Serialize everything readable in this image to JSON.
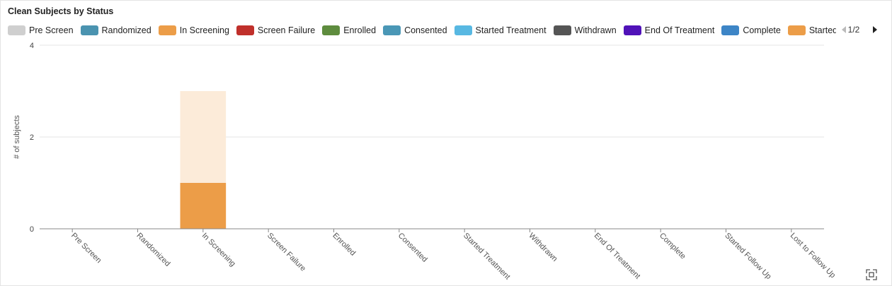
{
  "chart_data": {
    "type": "bar",
    "title": "Clean Subjects by Status",
    "y_label": "# of subjects",
    "legend_page": "1/2",
    "categories": [
      "Pre Screen",
      "Randomized",
      "In Screening",
      "Screen Failure",
      "Enrolled",
      "Consented",
      "Started Treatment",
      "Withdrawn",
      "End Of Treatment",
      "Complete",
      "Started Follow Up",
      "Lost to Follow Up"
    ],
    "totals": [
      0,
      0,
      3,
      0,
      0,
      0,
      0,
      0,
      0,
      0,
      0,
      0
    ],
    "totals_color": "#fcebd9",
    "series": [
      {
        "name": "Pre Screen",
        "color": "#cfcfcf",
        "values": [
          0,
          0,
          0,
          0,
          0,
          0,
          0,
          0,
          0,
          0,
          0,
          0
        ]
      },
      {
        "name": "Randomized",
        "color": "#4a93b0",
        "values": [
          0,
          0,
          0,
          0,
          0,
          0,
          0,
          0,
          0,
          0,
          0,
          0
        ]
      },
      {
        "name": "In Screening",
        "color": "#ec9d48",
        "values": [
          0,
          0,
          1,
          0,
          0,
          0,
          0,
          0,
          0,
          0,
          0,
          0
        ]
      },
      {
        "name": "Screen Failure",
        "color": "#c0302b",
        "values": [
          0,
          0,
          0,
          0,
          0,
          0,
          0,
          0,
          0,
          0,
          0,
          0
        ]
      },
      {
        "name": "Enrolled",
        "color": "#5e8c3e",
        "values": [
          0,
          0,
          0,
          0,
          0,
          0,
          0,
          0,
          0,
          0,
          0,
          0
        ]
      },
      {
        "name": "Consented",
        "color": "#4a97b6",
        "values": [
          0,
          0,
          0,
          0,
          0,
          0,
          0,
          0,
          0,
          0,
          0,
          0
        ]
      },
      {
        "name": "Started Treatment",
        "color": "#58b8e2",
        "values": [
          0,
          0,
          0,
          0,
          0,
          0,
          0,
          0,
          0,
          0,
          0,
          0
        ]
      },
      {
        "name": "Withdrawn",
        "color": "#555555",
        "values": [
          0,
          0,
          0,
          0,
          0,
          0,
          0,
          0,
          0,
          0,
          0,
          0
        ]
      },
      {
        "name": "End Of Treatment",
        "color": "#5012b8",
        "values": [
          0,
          0,
          0,
          0,
          0,
          0,
          0,
          0,
          0,
          0,
          0,
          0
        ]
      },
      {
        "name": "Complete",
        "color": "#3d85c6",
        "values": [
          0,
          0,
          0,
          0,
          0,
          0,
          0,
          0,
          0,
          0,
          0,
          0
        ]
      },
      {
        "name": "Started Follow Up",
        "color": "#ec9d48",
        "values": [
          0,
          0,
          0,
          0,
          0,
          0,
          0,
          0,
          0,
          0,
          0,
          0
        ]
      }
    ],
    "ylim": [
      0,
      4
    ],
    "yticks": [
      0,
      2,
      4
    ],
    "grid": true
  }
}
